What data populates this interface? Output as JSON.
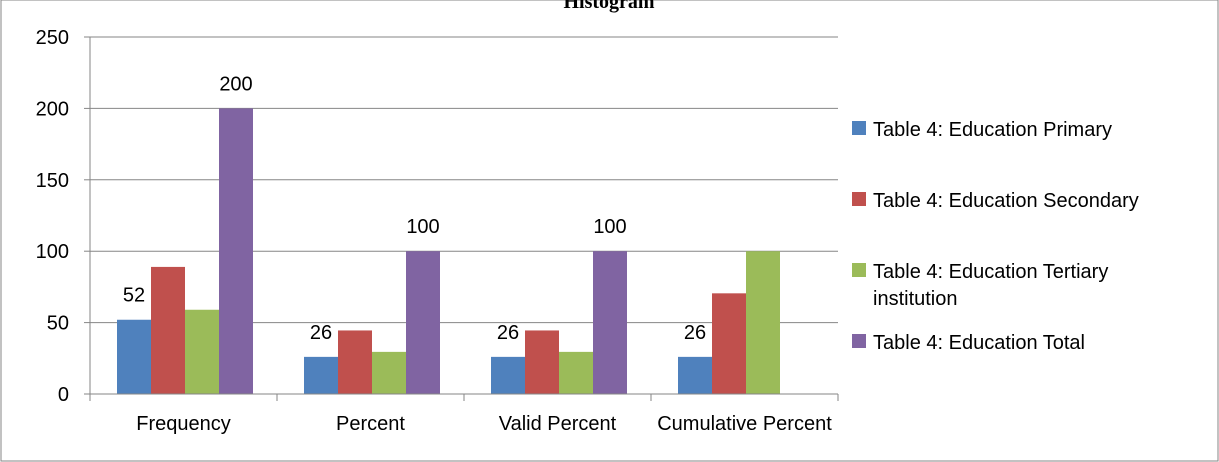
{
  "chart_data": {
    "type": "bar",
    "title": "Histogram",
    "xlabel": "",
    "ylabel": "",
    "categories": [
      "Frequency",
      "Percent",
      "Valid Percent",
      "Cumulative Percent"
    ],
    "ylim": [
      0,
      250
    ],
    "yticks": [
      "0",
      "50",
      "100",
      "150",
      "200",
      "250"
    ],
    "grid": true,
    "legend_position": "right",
    "series": [
      {
        "name": "Table 4: Education Primary",
        "color": "#4F81BD",
        "values": [
          52,
          26,
          26,
          26
        ],
        "labels": [
          "52",
          "26",
          "26",
          "26"
        ]
      },
      {
        "name": "Table 4: Education Secondary",
        "color": "#C0504D",
        "values": [
          89,
          44.5,
          44.5,
          70.5
        ],
        "labels": [
          "",
          "",
          "",
          ""
        ]
      },
      {
        "name": "Table 4: Education Tertiary institution",
        "color": "#9BBB59",
        "values": [
          59,
          29.5,
          29.5,
          100
        ],
        "labels": [
          "",
          "",
          "",
          ""
        ]
      },
      {
        "name": "Table 4: Education Total",
        "color": "#8064A2",
        "values": [
          200,
          100,
          100,
          null
        ],
        "labels": [
          "200",
          "100",
          "100",
          ""
        ]
      }
    ],
    "legend_lines": [
      [
        "Table 4: Education Primary"
      ],
      [
        "Table 4: Education Secondary"
      ],
      [
        "Table 4: Education Tertiary",
        "institution"
      ],
      [
        "Table 4: Education Total"
      ]
    ]
  }
}
